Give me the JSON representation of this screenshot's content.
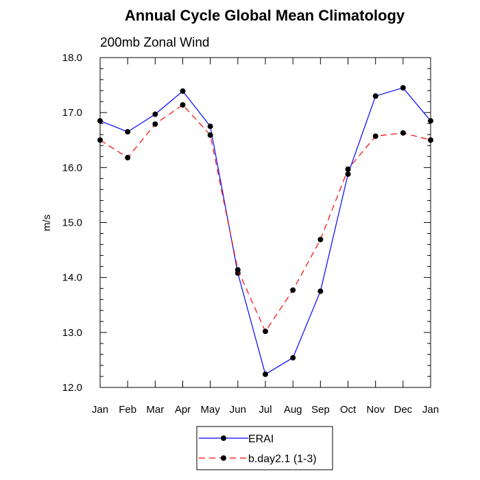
{
  "chart_data": {
    "type": "line",
    "title": "Annual Cycle Global Mean Climatology",
    "subtitle": "200mb Zonal Wind",
    "xlabel": "",
    "ylabel": "m/s",
    "categories": [
      "Jan",
      "Feb",
      "Mar",
      "Apr",
      "May",
      "Jun",
      "Jul",
      "Aug",
      "Sep",
      "Oct",
      "Nov",
      "Dec",
      "Jan"
    ],
    "ylim": [
      12.0,
      18.0
    ],
    "yticks": [
      "12.0",
      "13.0",
      "14.0",
      "15.0",
      "16.0",
      "17.0",
      "18.0"
    ],
    "legend_position": "bottom-center",
    "series": [
      {
        "name": "ERAI",
        "color": "#0000ff",
        "line_style": "solid",
        "marker": "circle",
        "values": [
          16.85,
          16.65,
          16.97,
          17.39,
          16.75,
          14.08,
          12.24,
          12.54,
          13.75,
          15.88,
          17.3,
          17.45,
          16.85
        ]
      },
      {
        "name": "b.day2.1 (1-3)",
        "color": "#ff0000",
        "line_style": "dashed",
        "marker": "circle",
        "values": [
          16.5,
          16.18,
          16.79,
          17.14,
          16.59,
          14.14,
          13.02,
          13.77,
          14.69,
          15.97,
          16.57,
          16.63,
          16.5
        ]
      }
    ]
  }
}
